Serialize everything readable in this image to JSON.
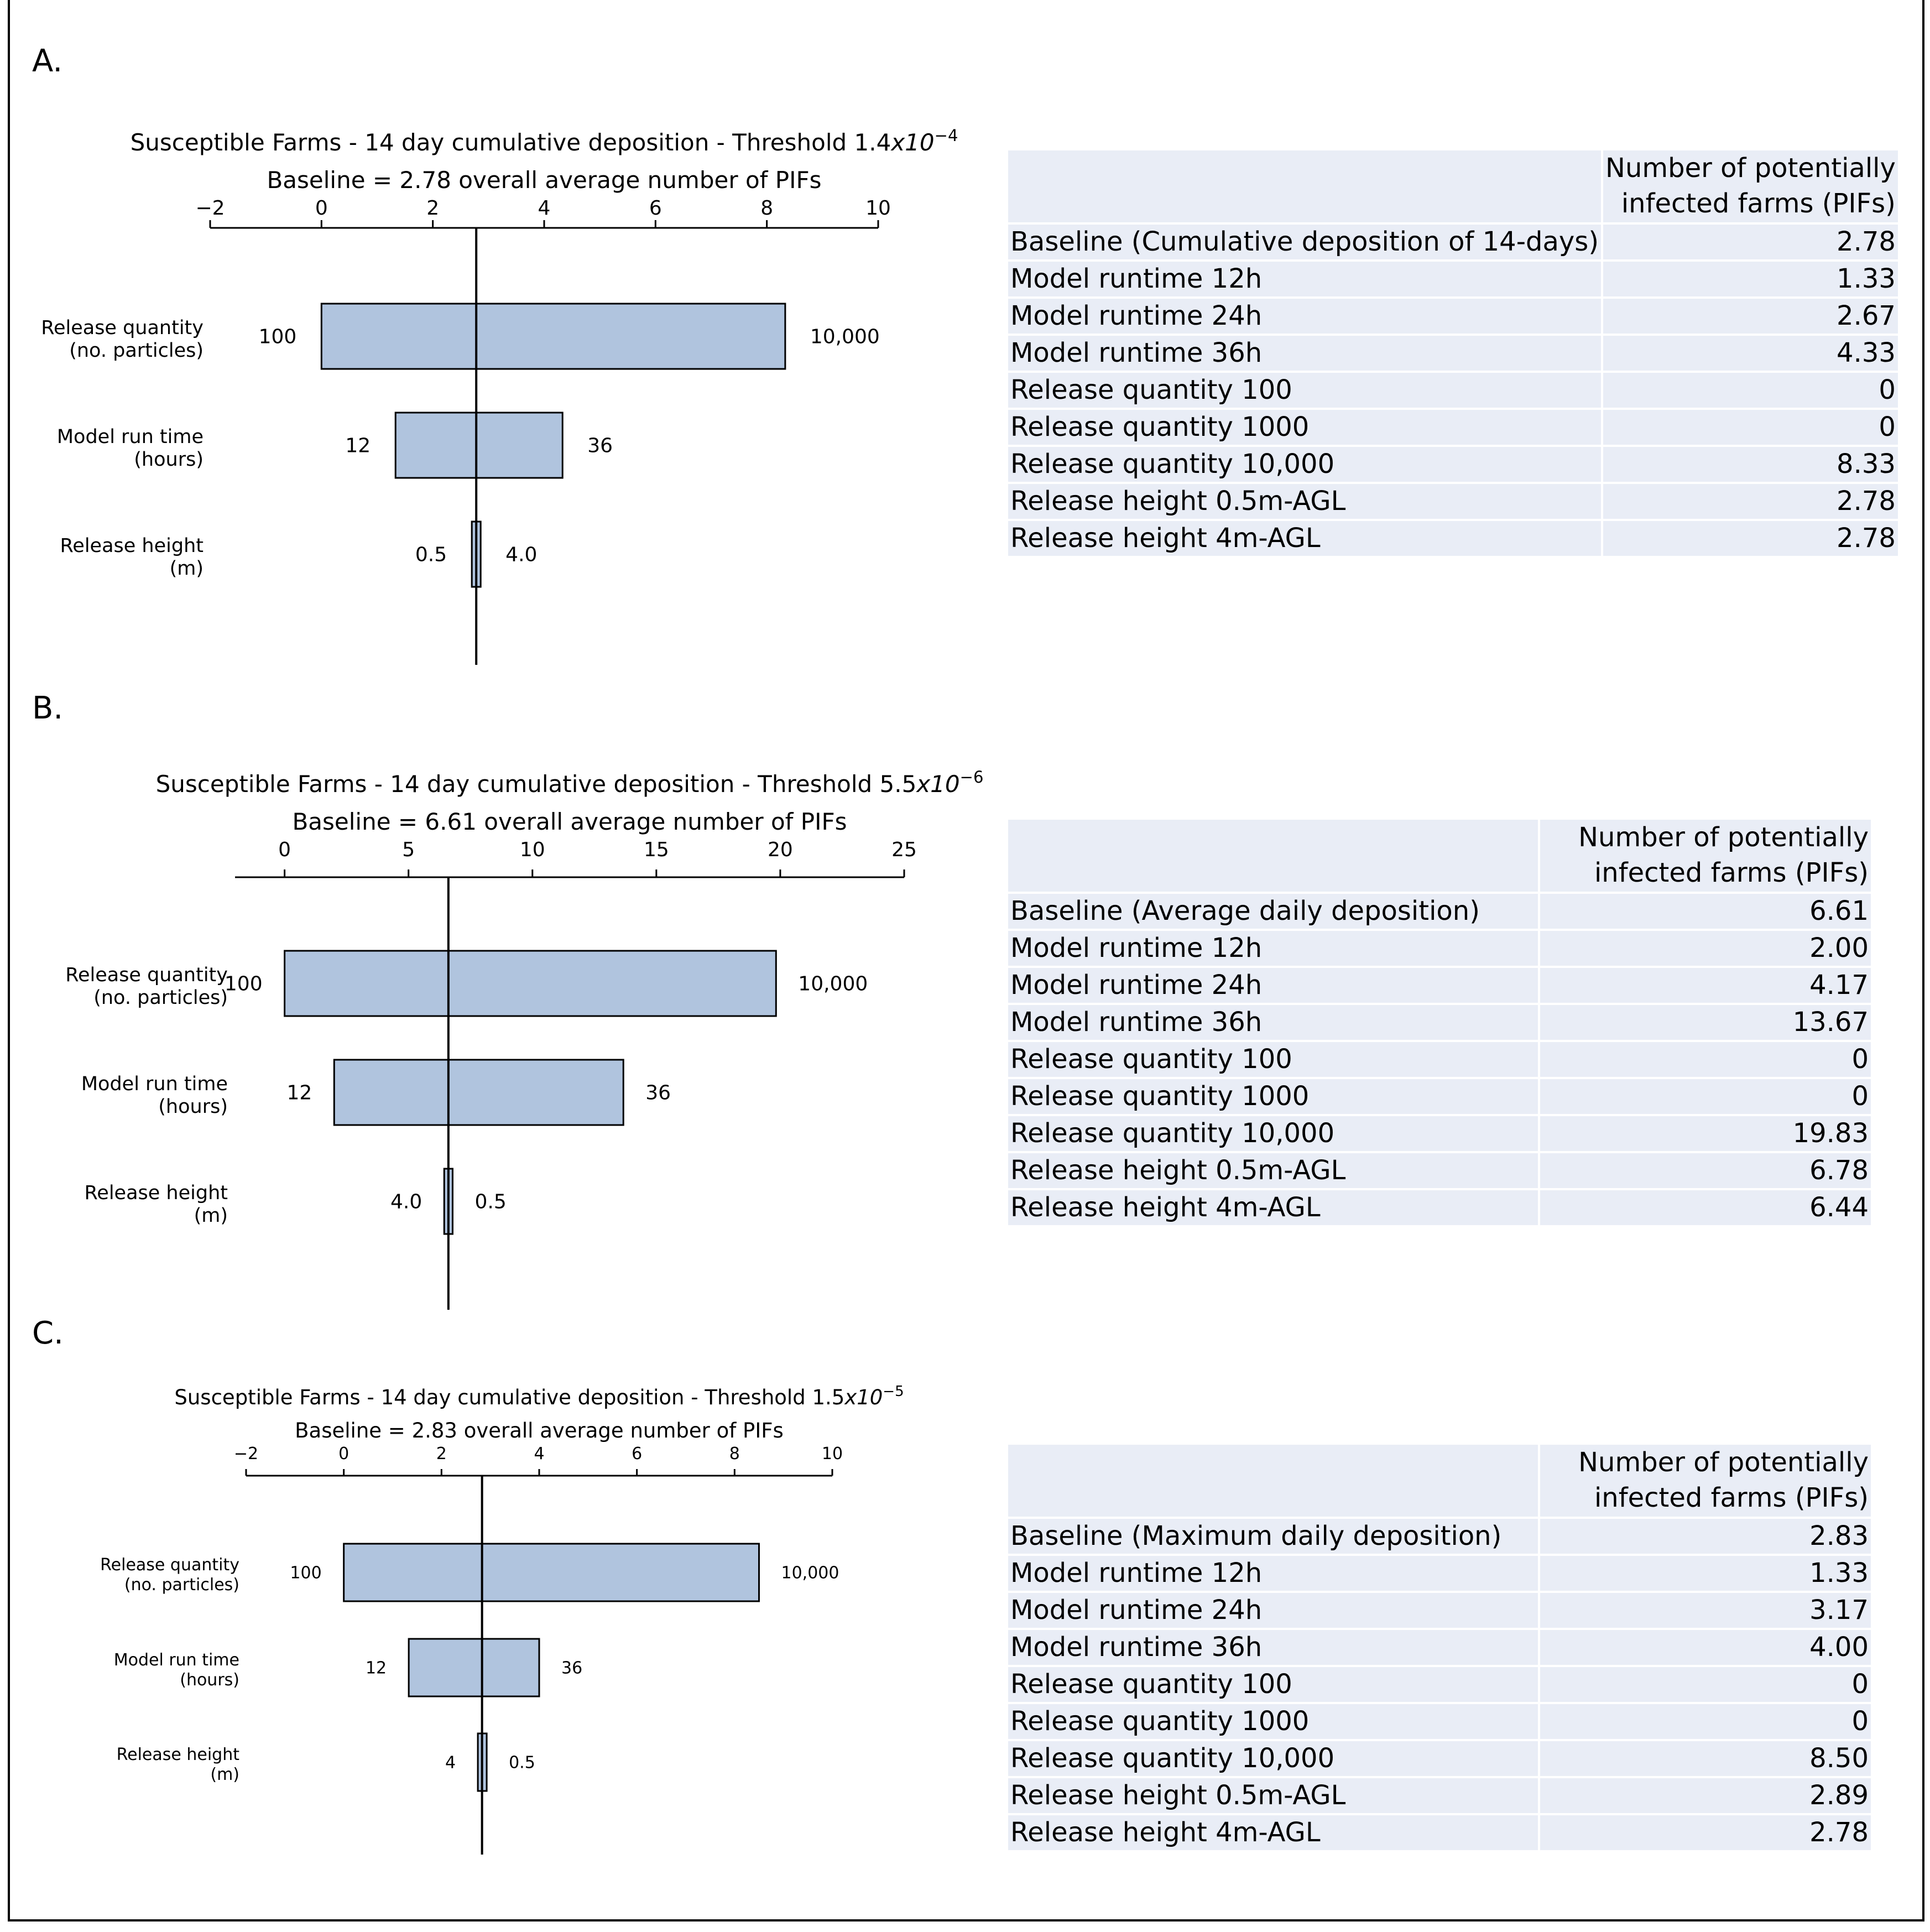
{
  "panels": [
    {
      "letter": "A.",
      "table": {
        "header": "Number of potentially infected farms (PIFs)",
        "header_line1": "Number of potentially",
        "header_line2": "infected farms (PIFs)",
        "rows": [
          {
            "label": "Baseline (Cumulative deposition of 14-days)",
            "value": "2.78"
          },
          {
            "label": "Model runtime 12h",
            "value": "1.33"
          },
          {
            "label": "Model runtime 24h",
            "value": "2.67"
          },
          {
            "label": "Model runtime 36h",
            "value": "4.33"
          },
          {
            "label": "Release quantity 100",
            "value": "0"
          },
          {
            "label": "Release quantity 1000",
            "value": "0"
          },
          {
            "label": "Release quantity 10,000",
            "value": "8.33"
          },
          {
            "label": "Release height 0.5m-AGL",
            "value": "2.78"
          },
          {
            "label": "Release height 4m-AGL",
            "value": "2.78"
          }
        ]
      }
    },
    {
      "letter": "B.",
      "table": {
        "header": "Number of potentially infected farms (PIFs)",
        "header_line1": "Number of potentially",
        "header_line2": "infected farms (PIFs)",
        "rows": [
          {
            "label": "Baseline (Average daily deposition)",
            "value": "6.61"
          },
          {
            "label": "Model runtime 12h",
            "value": "2.00"
          },
          {
            "label": "Model runtime 24h",
            "value": "4.17"
          },
          {
            "label": "Model runtime 36h",
            "value": "13.67"
          },
          {
            "label": "Release quantity 100",
            "value": "0"
          },
          {
            "label": "Release quantity 1000",
            "value": "0"
          },
          {
            "label": "Release quantity 10,000",
            "value": "19.83"
          },
          {
            "label": "Release height 0.5m-AGL",
            "value": "6.78"
          },
          {
            "label": "Release height 4m-AGL",
            "value": "6.44"
          }
        ]
      }
    },
    {
      "letter": "C.",
      "table": {
        "header": "Number of potentially infected farms (PIFs)",
        "header_line1": "Number of potentially",
        "header_line2": "infected farms (PIFs)",
        "rows": [
          {
            "label": "Baseline (Maximum  daily deposition)",
            "value": "2.83"
          },
          {
            "label": "Model runtime 12h",
            "value": "1.33"
          },
          {
            "label": "Model runtime 24h",
            "value": "3.17"
          },
          {
            "label": "Model runtime 36h",
            "value": "4.00"
          },
          {
            "label": "Release quantity 100",
            "value": "0"
          },
          {
            "label": "Release quantity 1000",
            "value": "0"
          },
          {
            "label": "Release quantity 10,000",
            "value": "8.50"
          },
          {
            "label": "Release height 0.5m-AGL",
            "value": "2.89"
          },
          {
            "label": "Release height 4m-AGL",
            "value": "2.78"
          }
        ]
      }
    }
  ],
  "colors": {
    "bar_fill": "#b0c4de",
    "bar_stroke": "#000000",
    "table_bg": "#e9edf6",
    "text": "#000000"
  },
  "chart_data": [
    {
      "type": "bar",
      "subtype": "tornado",
      "title": "Susceptible Farms - 14 day cumulative deposition - Threshold 1.4x10^-4",
      "title_main": "Susceptible Farms - 14 day cumulative deposition - Threshold 1.4",
      "title_exp": "−4",
      "subtitle": "Baseline = 2.78 overall average number of PIFs",
      "baseline": 2.78,
      "xlim": [
        -2,
        10
      ],
      "xticks": [
        -2,
        0,
        2,
        4,
        6,
        8,
        10
      ],
      "xtick_labels": [
        "−2",
        "0",
        "2",
        "4",
        "6",
        "8",
        "10"
      ],
      "axis_position": "top",
      "categories": [
        {
          "line1": "Release quantity",
          "line2": "(no. particles)"
        },
        {
          "line1": "Model run time",
          "line2": "(hours)"
        },
        {
          "line1": "Release height",
          "line2": "(m)"
        }
      ],
      "bars": [
        {
          "low": 0,
          "high": 8.33,
          "low_label": "100",
          "high_label": "10,000"
        },
        {
          "low": 1.33,
          "high": 4.33,
          "low_label": "12",
          "high_label": "36"
        },
        {
          "low": 2.78,
          "high": 2.78,
          "low_label": "0.5",
          "high_label": "4.0"
        }
      ]
    },
    {
      "type": "bar",
      "subtype": "tornado",
      "title": "Susceptible Farms - 14 day cumulative deposition - Threshold 5.5x10^-6",
      "title_main": "Susceptible Farms - 14 day cumulative deposition - Threshold 5.5",
      "title_exp": "−6",
      "subtitle": "Baseline = 6.61 overall average number of PIFs",
      "baseline": 6.61,
      "xlim": [
        -2,
        25
      ],
      "xticks": [
        0,
        5,
        10,
        15,
        20,
        25
      ],
      "xtick_labels": [
        "0",
        "5",
        "10",
        "15",
        "20",
        "25"
      ],
      "axis_position": "top",
      "categories": [
        {
          "line1": "Release quantity",
          "line2": "(no. particles)"
        },
        {
          "line1": "Model run time",
          "line2": "(hours)"
        },
        {
          "line1": "Release height",
          "line2": "(m)"
        }
      ],
      "bars": [
        {
          "low": 0,
          "high": 19.83,
          "low_label": "100",
          "high_label": "10,000"
        },
        {
          "low": 2.0,
          "high": 13.67,
          "low_label": "12",
          "high_label": "36"
        },
        {
          "low": 6.44,
          "high": 6.78,
          "low_label": "4.0",
          "high_label": "0.5"
        }
      ]
    },
    {
      "type": "bar",
      "subtype": "tornado",
      "title": "Susceptible Farms - 14 day cumulative deposition - Threshold 1.5x10^-5",
      "title_main": "Susceptible Farms - 14 day cumulative deposition - Threshold 1.5",
      "title_exp": "−5",
      "subtitle": "Baseline = 2.83 overall average number of PIFs",
      "baseline": 2.83,
      "xlim": [
        -2,
        10
      ],
      "xticks": [
        -2,
        0,
        2,
        4,
        6,
        8,
        10
      ],
      "xtick_labels": [
        "−2",
        "0",
        "2",
        "4",
        "6",
        "8",
        "10"
      ],
      "axis_position": "top",
      "categories": [
        {
          "line1": "Release quantity",
          "line2": "(no. particles)"
        },
        {
          "line1": "Model run time",
          "line2": "(hours)"
        },
        {
          "line1": "Release height",
          "line2": "(m)"
        }
      ],
      "bars": [
        {
          "low": 0,
          "high": 8.5,
          "low_label": "100",
          "high_label": "10,000"
        },
        {
          "low": 1.33,
          "high": 4.0,
          "low_label": "12",
          "high_label": "36"
        },
        {
          "low": 2.78,
          "high": 2.89,
          "low_label": "4",
          "high_label": "0.5"
        }
      ]
    }
  ]
}
